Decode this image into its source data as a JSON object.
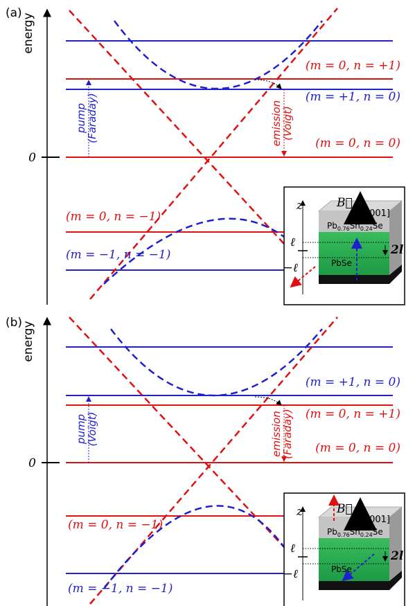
{
  "panels": [
    {
      "label": "(a)",
      "axis_label": "energy",
      "zero_label": "0",
      "levels": [
        "(m = 0, n = +1)",
        "(m = +1, n = 0)",
        "(m = 0, n = 0)",
        "(m = 0, n = −1)",
        "(m = −1, n = −1)"
      ],
      "pump": [
        "pump",
        "(Faraday)"
      ],
      "emission": [
        "emission",
        "(Voigt)"
      ],
      "inset": {
        "z": "z",
        "field": "B⃗",
        "direction": "[001]",
        "top_layer": [
          "Pb",
          "0.76",
          "Sn",
          "0.24",
          "Se"
        ],
        "bottom_layer": "PbSe",
        "upper": "ℓ",
        "lower": "−ℓ",
        "width": "2l"
      }
    },
    {
      "label": "(b)",
      "axis_label": "energy",
      "zero_label": "0",
      "levels": [
        "(m = +1, n = 0)",
        "(m = 0, n = +1)",
        "(m = 0, n = 0)",
        "(m = 0, n = −1)",
        "(m = −1, n = −1)"
      ],
      "pump": [
        "pump",
        "(Voigt)"
      ],
      "emission": [
        "emission",
        "(Faraday)"
      ],
      "inset": {
        "z": "z",
        "field": "B⃗",
        "direction": "[001]",
        "top_layer": [
          "Pb",
          "0.76",
          "Sn",
          "0.24",
          "Se"
        ],
        "bottom_layer": "PbSe",
        "upper": "ℓ",
        "lower": "−ℓ",
        "width": "2l"
      }
    }
  ]
}
